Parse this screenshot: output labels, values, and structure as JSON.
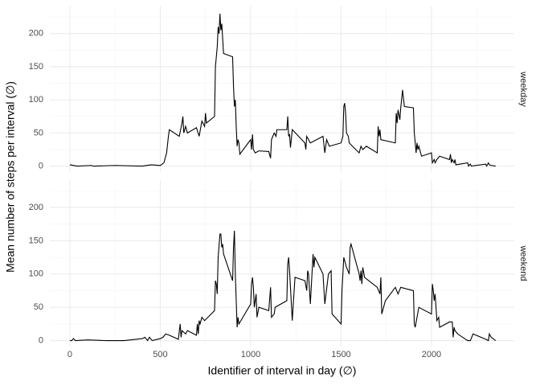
{
  "chart_data": {
    "type": "line",
    "xlabel": "Identifier of interval in day (∅)",
    "ylabel": "Mean number of steps per interval (∅)",
    "xlim": [
      -111,
      2458
    ],
    "xticks": [
      0,
      500,
      1000,
      1500,
      2000
    ],
    "ylim": [
      -9,
      241
    ],
    "yticks": [
      0,
      50,
      100,
      150,
      200
    ],
    "grid": true,
    "color": "#000000",
    "panels": [
      {
        "label": "weekday",
        "x": [
          0,
          40,
          120,
          130,
          250,
          400,
          450,
          500,
          520,
          535,
          545,
          550,
          605,
          620,
          625,
          630,
          640,
          650,
          700,
          715,
          730,
          745,
          750,
          755,
          800,
          805,
          815,
          820,
          825,
          830,
          835,
          840,
          850,
          900,
          905,
          910,
          915,
          920,
          925,
          930,
          935,
          940,
          1000,
          1005,
          1010,
          1015,
          1025,
          1045,
          1100,
          1110,
          1115,
          1130,
          1140,
          1145,
          1200,
          1205,
          1210,
          1215,
          1220,
          1230,
          1300,
          1305,
          1310,
          1330,
          1400,
          1410,
          1420,
          1435,
          1500,
          1510,
          1515,
          1520,
          1525,
          1530,
          1540,
          1545,
          1600,
          1610,
          1620,
          1640,
          1700,
          1705,
          1710,
          1715,
          1720,
          1800,
          1805,
          1810,
          1815,
          1825,
          1830,
          1840,
          1850,
          1900,
          1905,
          1915,
          1920,
          1925,
          1930,
          1945,
          2000,
          2005,
          2015,
          2020,
          2030,
          2045,
          2100,
          2105,
          2110,
          2115,
          2125,
          2130,
          2135,
          2200,
          2205,
          2210,
          2215,
          2220,
          2300,
          2305,
          2315,
          2320,
          2330,
          2355
        ],
        "values": [
          2,
          0,
          1,
          0,
          1,
          0,
          2,
          1,
          5,
          20,
          45,
          55,
          45,
          65,
          75,
          50,
          60,
          50,
          58,
          45,
          68,
          60,
          80,
          65,
          75,
          150,
          180,
          210,
          200,
          230,
          205,
          215,
          170,
          165,
          120,
          90,
          100,
          60,
          30,
          40,
          35,
          18,
          40,
          25,
          48,
          25,
          20,
          23,
          22,
          12,
          40,
          50,
          45,
          55,
          55,
          75,
          45,
          48,
          28,
          55,
          35,
          25,
          45,
          35,
          45,
          20,
          40,
          30,
          35,
          45,
          90,
          95,
          80,
          50,
          45,
          35,
          20,
          30,
          25,
          30,
          20,
          60,
          45,
          55,
          40,
          35,
          80,
          65,
          85,
          70,
          88,
          115,
          90,
          88,
          50,
          20,
          35,
          25,
          30,
          15,
          20,
          5,
          10,
          5,
          10,
          15,
          10,
          18,
          5,
          10,
          5,
          10,
          2,
          5,
          0,
          2,
          3,
          0,
          3,
          0,
          5,
          2,
          1,
          0
        ]
      },
      {
        "label": "weekend",
        "x": [
          0,
          10,
          20,
          30,
          100,
          200,
          300,
          400,
          415,
          430,
          440,
          455,
          500,
          515,
          530,
          550,
          600,
          610,
          615,
          620,
          640,
          650,
          700,
          705,
          710,
          715,
          720,
          730,
          745,
          800,
          805,
          810,
          815,
          820,
          830,
          835,
          840,
          845,
          850,
          900,
          905,
          910,
          915,
          920,
          925,
          930,
          935,
          1000,
          1005,
          1010,
          1015,
          1020,
          1030,
          1035,
          1045,
          1100,
          1110,
          1115,
          1130,
          1135,
          1200,
          1205,
          1210,
          1215,
          1220,
          1230,
          1245,
          1300,
          1310,
          1315,
          1320,
          1330,
          1345,
          1350,
          1355,
          1400,
          1410,
          1430,
          1445,
          1450,
          1500,
          1505,
          1515,
          1530,
          1545,
          1550,
          1555,
          1600,
          1605,
          1610,
          1615,
          1620,
          1630,
          1700,
          1715,
          1720,
          1725,
          1745,
          1800,
          1815,
          1830,
          1900,
          1905,
          1910,
          1930,
          2000,
          2005,
          2010,
          2015,
          2020,
          2030,
          2040,
          2045,
          2100,
          2115,
          2120,
          2125,
          2130,
          2145,
          2200,
          2215,
          2230,
          2300,
          2315,
          2320,
          2330,
          2355
        ],
        "values": [
          0,
          0,
          3,
          0,
          1,
          0,
          0,
          3,
          5,
          0,
          5,
          0,
          3,
          5,
          10,
          8,
          2,
          25,
          5,
          15,
          10,
          15,
          8,
          25,
          10,
          30,
          25,
          35,
          30,
          45,
          90,
          85,
          70,
          125,
          160,
          160,
          140,
          145,
          130,
          90,
          140,
          165,
          100,
          60,
          20,
          35,
          25,
          55,
          85,
          95,
          80,
          50,
          70,
          35,
          50,
          45,
          80,
          35,
          40,
          50,
          60,
          115,
          125,
          105,
          80,
          30,
          95,
          90,
          75,
          105,
          100,
          55,
          130,
          110,
          125,
          100,
          55,
          100,
          105,
          40,
          25,
          75,
          125,
          110,
          100,
          140,
          145,
          100,
          90,
          105,
          85,
          110,
          95,
          80,
          70,
          95,
          40,
          60,
          80,
          70,
          80,
          75,
          25,
          20,
          50,
          40,
          85,
          75,
          60,
          70,
          30,
          35,
          20,
          28,
          28,
          5,
          20,
          15,
          10,
          0,
          0,
          10,
          2,
          0,
          10,
          5,
          0
        ]
      }
    ]
  }
}
